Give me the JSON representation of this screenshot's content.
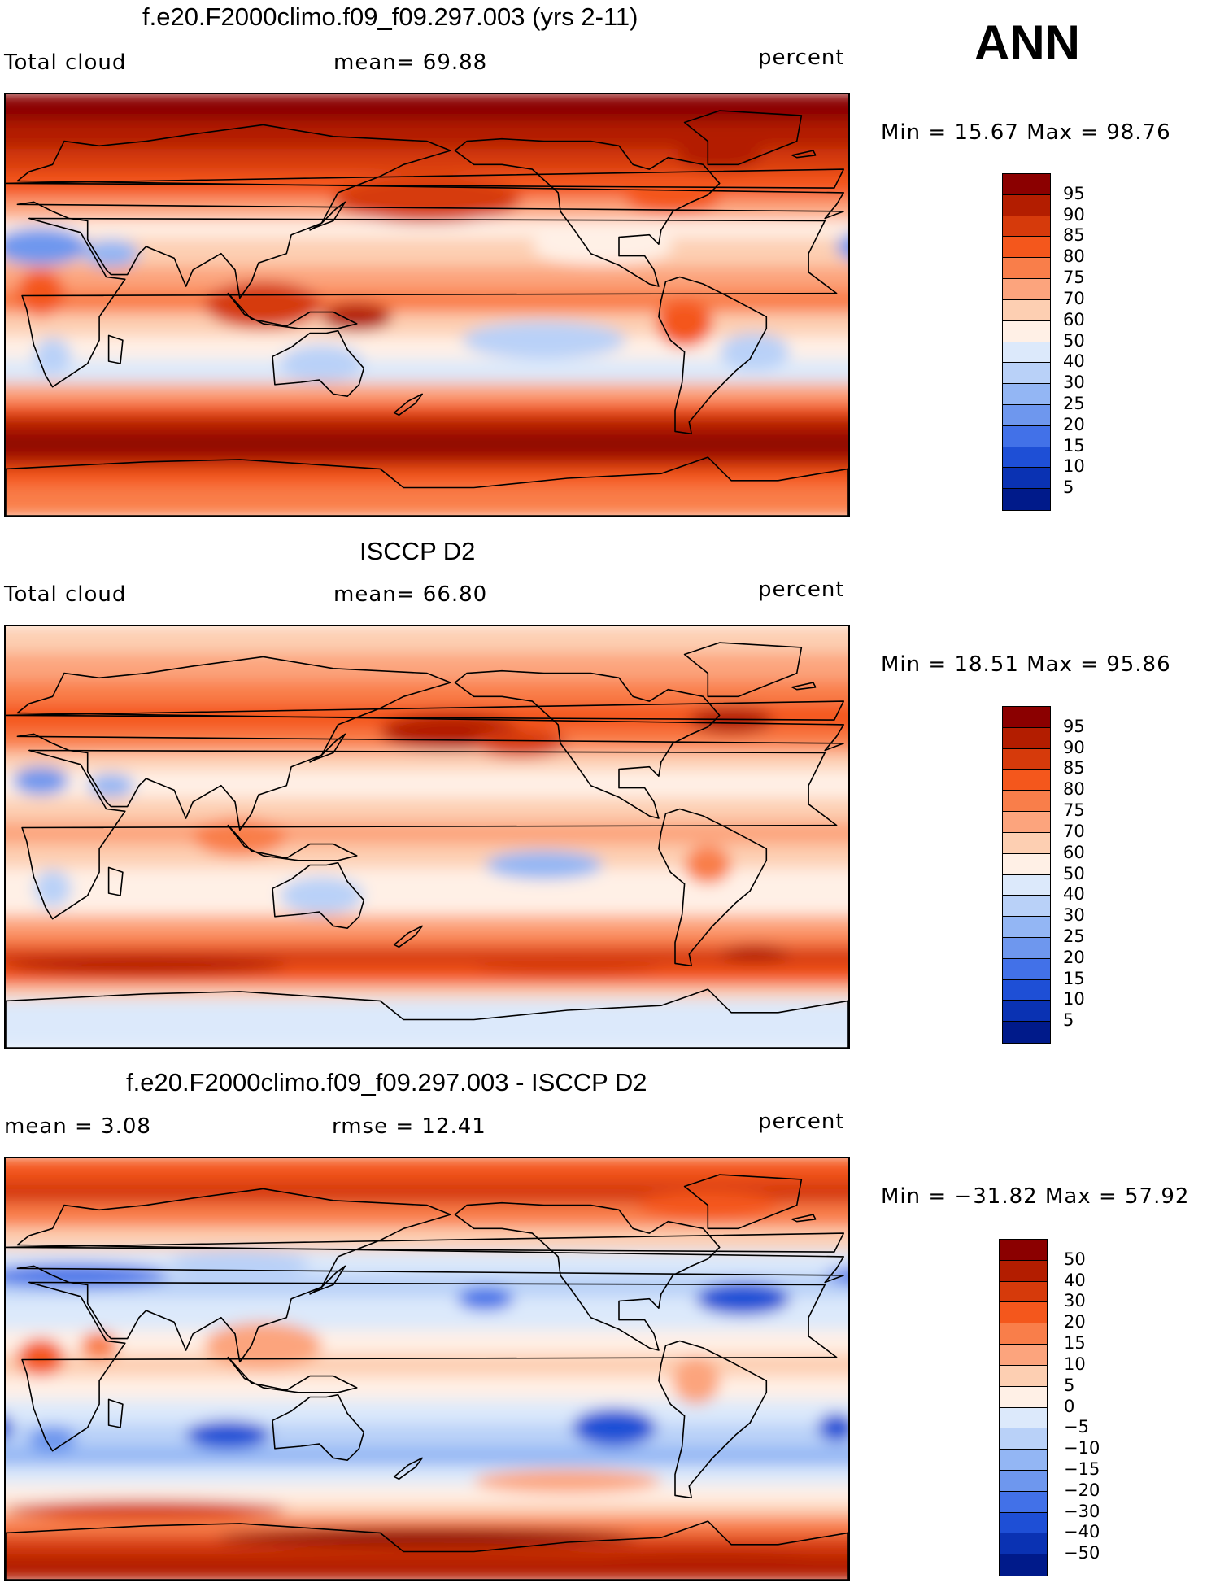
{
  "season": "ANN",
  "units_label": "percent",
  "panels": [
    {
      "title": "f.e20.F2000climo.f09_f09.297.003 (yrs 2-11)",
      "left_label": "Total cloud",
      "mid_label": "mean=   69.88",
      "stats": "Min =   15.67  Max =   98.76"
    },
    {
      "title": "ISCCP D2",
      "left_label": "Total cloud",
      "mid_label": "mean=   66.80",
      "stats": "Min =   18.51  Max =   95.86"
    },
    {
      "title": "f.e20.F2000climo.f09_f09.297.003 - ISCCP D2",
      "left_label": "mean =     3.08",
      "mid_label": "rmse =   12.41",
      "stats": "Min = −31.82  Max =   57.92"
    }
  ],
  "chart_data": [
    {
      "type": "heatmap",
      "title": "f.e20.F2000climo.f09_f09.297.003 (yrs 2-11)",
      "variable": "Total cloud",
      "units": "percent",
      "mean": 69.88,
      "min": 15.67,
      "max": 98.76,
      "colorbar_levels": [
        "95",
        "90",
        "85",
        "80",
        "75",
        "70",
        "60",
        "50",
        "40",
        "30",
        "25",
        "20",
        "15",
        "10",
        "5"
      ],
      "colors": [
        "#8b0000",
        "#b31d00",
        "#d63a0b",
        "#f4571c",
        "#f97e4a",
        "#fca47d",
        "#fdcfb2",
        "#fff0e6",
        "#dce9fb",
        "#b9d1f8",
        "#93b6f4",
        "#6e97ee",
        "#4271e8",
        "#1e4fd6",
        "#0a32b3",
        "#001a8a"
      ]
    },
    {
      "type": "heatmap",
      "title": "ISCCP D2",
      "variable": "Total cloud",
      "units": "percent",
      "mean": 66.8,
      "min": 18.51,
      "max": 95.86,
      "colorbar_levels": [
        "95",
        "90",
        "85",
        "80",
        "75",
        "70",
        "60",
        "50",
        "40",
        "30",
        "25",
        "20",
        "15",
        "10",
        "5"
      ],
      "colors": [
        "#8b0000",
        "#b31d00",
        "#d63a0b",
        "#f4571c",
        "#f97e4a",
        "#fca47d",
        "#fdcfb2",
        "#fff0e6",
        "#dce9fb",
        "#b9d1f8",
        "#93b6f4",
        "#6e97ee",
        "#4271e8",
        "#1e4fd6",
        "#0a32b3",
        "#001a8a"
      ]
    },
    {
      "type": "heatmap",
      "title": "f.e20.F2000climo.f09_f09.297.003 - ISCCP D2",
      "units": "percent",
      "mean": 3.08,
      "rmse": 12.41,
      "min": -31.82,
      "max": 57.92,
      "colorbar_levels": [
        "50",
        "40",
        "30",
        "20",
        "15",
        "10",
        "5",
        "0",
        "−5",
        "−10",
        "−15",
        "−20",
        "−30",
        "−40",
        "−50"
      ],
      "colors": [
        "#8b0000",
        "#b31d00",
        "#d63a0b",
        "#f4571c",
        "#f97e4a",
        "#fca47d",
        "#fdcfb2",
        "#fff0e6",
        "#dce9fb",
        "#b9d1f8",
        "#93b6f4",
        "#6e97ee",
        "#4271e8",
        "#1e4fd6",
        "#0a32b3",
        "#001a8a"
      ]
    }
  ]
}
